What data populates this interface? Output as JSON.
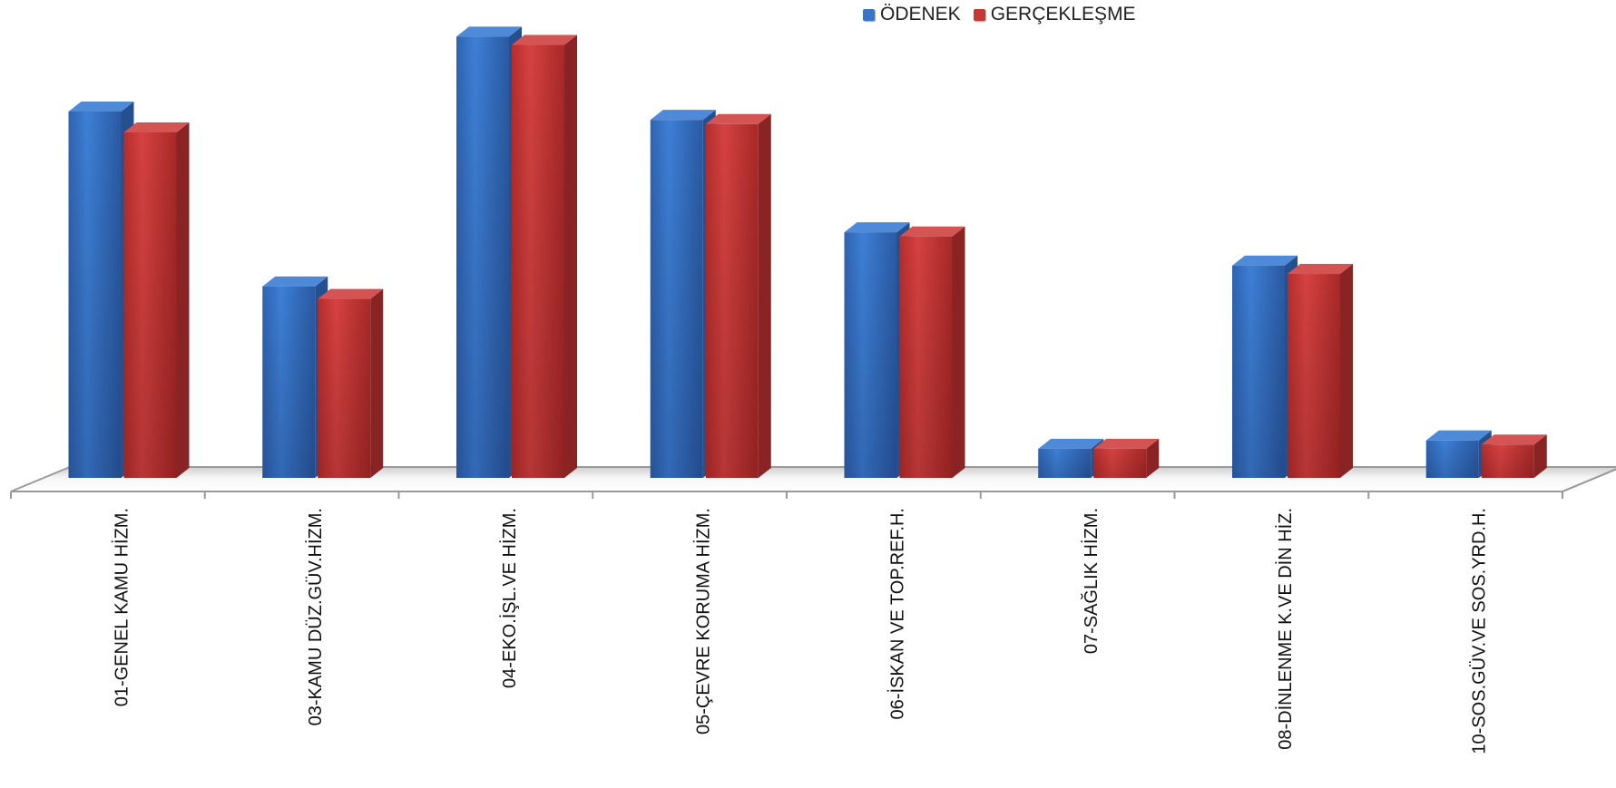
{
  "chart_data": {
    "type": "bar",
    "categories": [
      "01-GENEL KAMU HİZM.",
      "03-KAMU DÜZ.GÜV.HİZM.",
      "04-EKO.İŞL.VE HİZM.",
      "05-ÇEVRE KORUMA HİZM.",
      "06-İSKAN VE TOP.REF.H.",
      "07-SAĞLIK HİZM.",
      "08-DİNLENME K.VE DİN HİZ.",
      "10-SOS.GÜV.VE SOS.YRD.H."
    ],
    "series": [
      {
        "name": "ÖDENEK",
        "color": "#3a74c8",
        "values": [
          88,
          46,
          106,
          86,
          59,
          7,
          51,
          9
        ]
      },
      {
        "name": "GERÇEKLEŞME",
        "color": "#c83737",
        "values": [
          83,
          43,
          104,
          85,
          58,
          7,
          49,
          8
        ]
      }
    ],
    "title": "",
    "xlabel": "",
    "ylabel": "",
    "ylim": [
      0,
      110
    ],
    "legend_position": "top-center",
    "grid": false,
    "style": "3d-column"
  }
}
